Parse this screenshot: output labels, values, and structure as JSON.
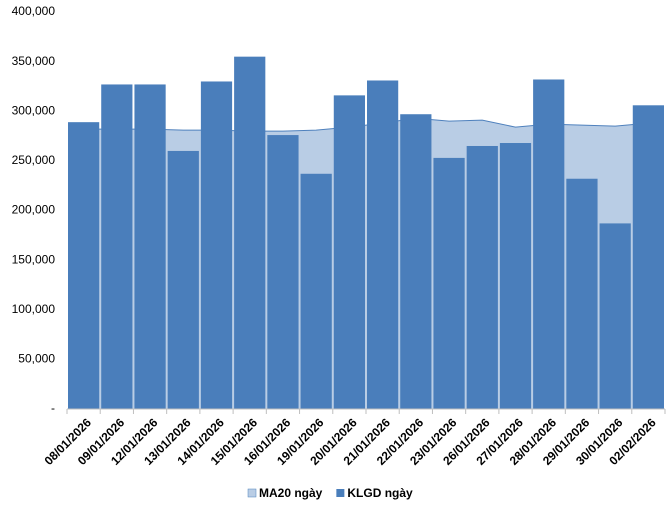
{
  "chart_data": {
    "type": "bar",
    "categories": [
      "08/01/2026",
      "09/01/2026",
      "12/01/2026",
      "13/01/2026",
      "14/01/2026",
      "15/01/2026",
      "16/01/2026",
      "19/01/2026",
      "20/01/2026",
      "21/01/2026",
      "22/01/2026",
      "23/01/2026",
      "26/01/2026",
      "27/01/2026",
      "28/01/2026",
      "29/01/2026",
      "30/01/2026",
      "02/02/2026"
    ],
    "series": [
      {
        "name": "MA20 ngày",
        "type": "area",
        "color": "#b9cde5",
        "line_color": "#4f81bd",
        "values": [
          282000,
          282000,
          282000,
          281000,
          281000,
          280000,
          280000,
          281000,
          284000,
          288000,
          293000,
          290000,
          291000,
          284000,
          287000,
          286000,
          285000,
          288000
        ]
      },
      {
        "name": "KLGD ngày",
        "type": "bar",
        "color": "#4a7ebb",
        "values": [
          289000,
          327000,
          327000,
          260000,
          330000,
          355000,
          276000,
          237000,
          316000,
          331000,
          297000,
          253000,
          265000,
          268000,
          332000,
          232000,
          187000,
          306000
        ]
      }
    ],
    "ylim": [
      0,
      400000
    ],
    "yticks": [
      {
        "value": 0,
        "label": "-"
      },
      {
        "value": 50000,
        "label": "50,000"
      },
      {
        "value": 100000,
        "label": "100,000"
      },
      {
        "value": 150000,
        "label": "150,000"
      },
      {
        "value": 200000,
        "label": "200,000"
      },
      {
        "value": 250000,
        "label": "250,000"
      },
      {
        "value": 300000,
        "label": "300,000"
      },
      {
        "value": 350000,
        "label": "350,000"
      },
      {
        "value": 400000,
        "label": "400,000"
      }
    ],
    "grid": false,
    "legend": "bottom"
  }
}
